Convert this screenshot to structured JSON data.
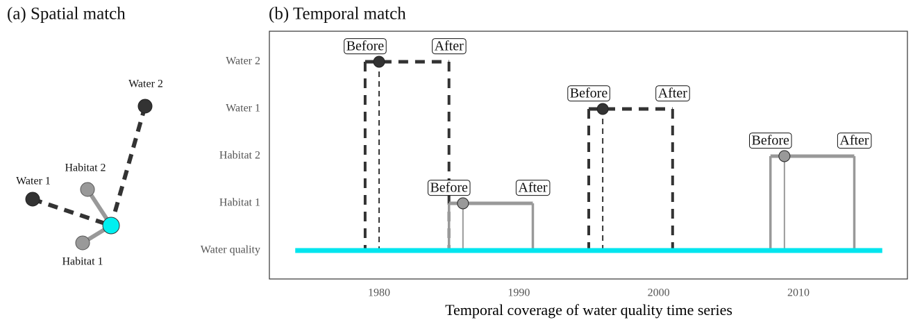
{
  "spatial": {
    "title": "(a) Spatial match",
    "nodes": [
      "Water 2",
      "Water 1",
      "Habitat 2",
      "Habitat 1"
    ]
  },
  "chart_data": {
    "type": "timeline",
    "title": "(b) Temporal match",
    "x_label": "Temporal coverage of water quality time series",
    "xlim": [
      1972.15,
      2017.8
    ],
    "xticks": [
      1980,
      1990,
      2000,
      2010
    ],
    "categories": [
      "Water quality",
      "Habitat 1",
      "Habitat 2",
      "Water 1",
      "Water 2"
    ],
    "before_label": "Before",
    "after_label": "After",
    "reference": {
      "category": 0,
      "color": "#00e5ee",
      "span": [
        1974,
        2016
      ]
    },
    "series": [
      {
        "category": 4,
        "kind": "water",
        "color": "#333333",
        "before": 1979,
        "sample": 1980,
        "after": 1985
      },
      {
        "category": 3,
        "kind": "water",
        "color": "#333333",
        "before": 1995,
        "sample": 1996,
        "after": 2001
      },
      {
        "category": 2,
        "kind": "habitat",
        "color": "#999999",
        "before": 2008,
        "sample": 2009,
        "after": 2014
      },
      {
        "category": 1,
        "kind": "habitat",
        "color": "#999999",
        "before": 1985,
        "sample": 1986,
        "after": 1991
      }
    ]
  }
}
